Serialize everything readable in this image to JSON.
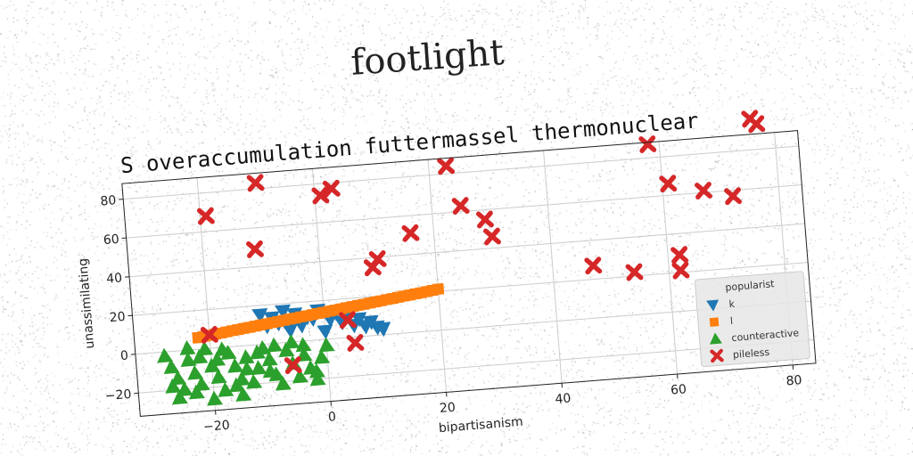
{
  "figure_title": "footlight",
  "chart_data": {
    "type": "scatter",
    "title": "S overaccumulation futtermassel thermonuclear",
    "xlabel": "bipartisanism",
    "ylabel": "unassimilating",
    "xlim": [
      -33,
      84
    ],
    "ylim": [
      -32,
      88
    ],
    "xticks": [
      -20,
      0,
      20,
      40,
      60,
      80
    ],
    "yticks": [
      -20,
      0,
      20,
      40,
      60,
      80
    ],
    "grid": true,
    "legend": {
      "title": "popularist",
      "placement": "lower-right"
    },
    "series": [
      {
        "name": "k",
        "marker": "triangle-down",
        "color": "#1f77b4",
        "points": [
          [
            -11,
            15
          ],
          [
            -9,
            13
          ],
          [
            -7,
            16
          ],
          [
            -5,
            14
          ],
          [
            -3,
            12
          ],
          [
            -1,
            15
          ],
          [
            1,
            10
          ],
          [
            3,
            8
          ],
          [
            4,
            12
          ],
          [
            5,
            6
          ],
          [
            6,
            9
          ],
          [
            7,
            5
          ],
          [
            8,
            7
          ],
          [
            9,
            4
          ],
          [
            10,
            3
          ],
          [
            -8,
            10
          ],
          [
            -4,
            8
          ],
          [
            -2,
            11
          ],
          [
            2,
            13
          ],
          [
            -6,
            6
          ],
          [
            0,
            4
          ],
          [
            -10,
            9
          ]
        ]
      },
      {
        "name": "l",
        "marker": "square",
        "color": "#ff7f0e",
        "points": [
          [
            -22,
            6
          ],
          [
            -21,
            6.4
          ],
          [
            -20,
            6.7
          ],
          [
            -19,
            7.1
          ],
          [
            -18,
            7.4
          ],
          [
            -17,
            7.8
          ],
          [
            -16,
            8.2
          ],
          [
            -15,
            8.5
          ],
          [
            -14,
            8.9
          ],
          [
            -13,
            9.2
          ],
          [
            -12,
            9.6
          ],
          [
            -11,
            10
          ],
          [
            -10,
            10.3
          ],
          [
            -9,
            10.7
          ],
          [
            -8,
            11
          ],
          [
            -7,
            11.4
          ],
          [
            -6,
            11.8
          ],
          [
            -5,
            12.1
          ],
          [
            -4,
            12.5
          ],
          [
            -3,
            12.8
          ],
          [
            -2,
            13.2
          ],
          [
            -1,
            13.6
          ],
          [
            0,
            13.9
          ],
          [
            1,
            14.3
          ],
          [
            2,
            14.6
          ],
          [
            3,
            15
          ],
          [
            4,
            15.4
          ],
          [
            5,
            15.7
          ],
          [
            6,
            16.1
          ],
          [
            7,
            16.4
          ],
          [
            8,
            16.8
          ],
          [
            9,
            17.2
          ],
          [
            10,
            17.5
          ],
          [
            11,
            17.9
          ],
          [
            12,
            18.2
          ],
          [
            13,
            18.6
          ],
          [
            14,
            19
          ],
          [
            15,
            19.3
          ],
          [
            16,
            19.7
          ],
          [
            17,
            20
          ],
          [
            18,
            20.4
          ],
          [
            19,
            20.8
          ],
          [
            20,
            21.2
          ]
        ]
      },
      {
        "name": "counteractive",
        "marker": "triangle-up",
        "color": "#2ca02c",
        "points": [
          [
            -28,
            -2
          ],
          [
            -27,
            -8
          ],
          [
            -26,
            -14
          ],
          [
            -25,
            -20
          ],
          [
            -24,
            -5
          ],
          [
            -23,
            -12
          ],
          [
            -22,
            -18
          ],
          [
            -21,
            0
          ],
          [
            -20,
            -9
          ],
          [
            -19,
            -15
          ],
          [
            -18,
            -22
          ],
          [
            -17,
            -3
          ],
          [
            -16,
            -10
          ],
          [
            -15,
            -17
          ],
          [
            -14,
            -6
          ],
          [
            -13,
            -19
          ],
          [
            -12,
            -12
          ],
          [
            -11,
            -2
          ],
          [
            -10,
            -8
          ],
          [
            -9,
            -16
          ],
          [
            -8,
            -21
          ],
          [
            -7,
            -4
          ],
          [
            -6,
            -11
          ],
          [
            -5,
            -18
          ],
          [
            -4,
            -7
          ],
          [
            -3,
            -14
          ],
          [
            -2,
            -20
          ],
          [
            -1,
            -9
          ],
          [
            0,
            -3
          ],
          [
            -26,
            -24
          ],
          [
            -20,
            -26
          ],
          [
            -15,
            -25
          ],
          [
            -24,
            1
          ],
          [
            -18,
            -1
          ],
          [
            -12,
            -4
          ],
          [
            -6,
            0
          ],
          [
            -27,
            -18
          ],
          [
            -22,
            -4
          ],
          [
            -16,
            -20
          ],
          [
            -10,
            -14
          ],
          [
            -4,
            -2
          ],
          [
            -2,
            -16
          ],
          [
            -9,
            -1
          ],
          [
            -14,
            -12
          ],
          [
            -23,
            -22
          ],
          [
            -19,
            -6
          ]
        ]
      },
      {
        "name": "pileless",
        "marker": "x",
        "color": "#d62728",
        "points": [
          [
            -19,
            68
          ],
          [
            -10,
            83
          ],
          [
            -11,
            49
          ],
          [
            1,
            74
          ],
          [
            3,
            77
          ],
          [
            -20,
            7
          ],
          [
            4,
            9
          ],
          [
            5,
            -3
          ],
          [
            -6,
            -12
          ],
          [
            9,
            35
          ],
          [
            10,
            39
          ],
          [
            16,
            51
          ],
          [
            23,
            84
          ],
          [
            25,
            63
          ],
          [
            29,
            55
          ],
          [
            30,
            46
          ],
          [
            47,
            27
          ],
          [
            54,
            22
          ],
          [
            58,
            87
          ],
          [
            61,
            66
          ],
          [
            62,
            29
          ],
          [
            62,
            21
          ],
          [
            67,
            61
          ],
          [
            72,
            57
          ],
          [
            76,
            96
          ],
          [
            77,
            93
          ]
        ]
      }
    ]
  }
}
